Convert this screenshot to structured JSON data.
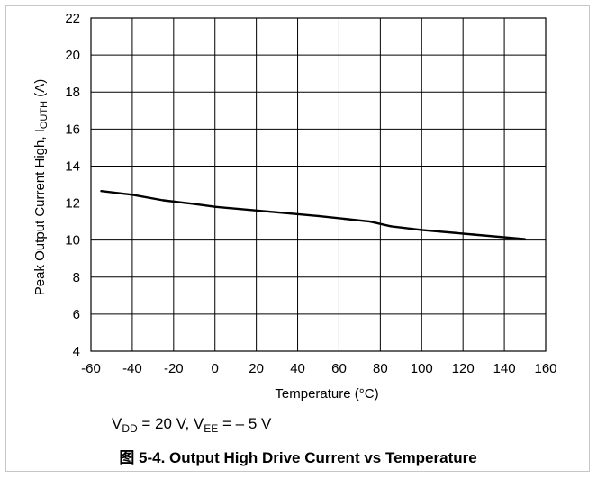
{
  "chart_data": {
    "type": "line",
    "xlabel": "Temperature (°C)",
    "ylabel_prefix": "Peak Output Current High, I",
    "ylabel_sub": "OUTH",
    "ylabel_suffix": " (A)",
    "xlim": [
      -60,
      160
    ],
    "ylim": [
      4,
      22
    ],
    "x_ticks": [
      "-60",
      "-40",
      "-20",
      "0",
      "20",
      "40",
      "60",
      "80",
      "100",
      "120",
      "140",
      "160"
    ],
    "y_ticks": [
      "4",
      "6",
      "8",
      "10",
      "12",
      "14",
      "16",
      "18",
      "20",
      "22"
    ],
    "grid": true,
    "series": [
      {
        "x": [
          -55,
          -40,
          -25,
          -10,
          0,
          25,
          50,
          75,
          85,
          100,
          125,
          150
        ],
        "y": [
          12.65,
          12.45,
          12.15,
          11.95,
          11.8,
          11.55,
          11.3,
          11.0,
          10.75,
          10.55,
          10.3,
          10.05
        ]
      }
    ]
  },
  "conditions": {
    "v1": "V",
    "v1_sub": "DD",
    "v1_rest": " = 20 V, V",
    "v2_sub": "EE",
    "v2_rest": " =  – 5 V"
  },
  "caption": "图 5-4. Output High Drive Current vs Temperature"
}
